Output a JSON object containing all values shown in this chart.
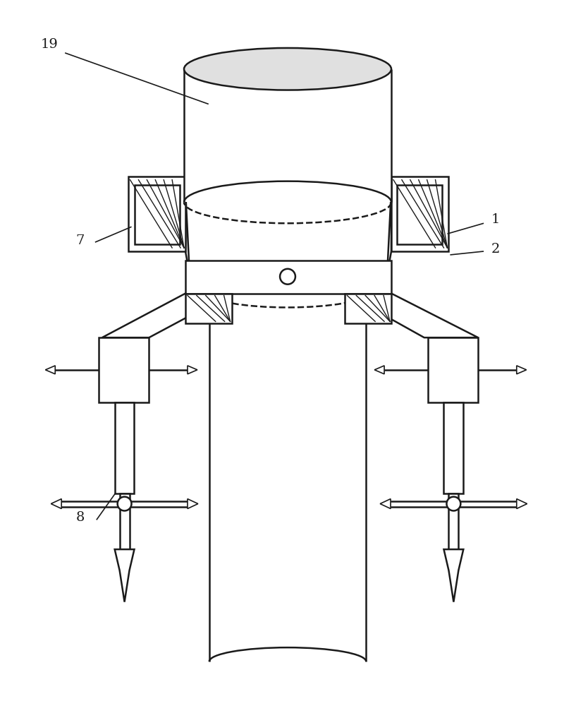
{
  "bg_color": "#ffffff",
  "line_color": "#1a1a1a",
  "line_width": 1.8,
  "label_fontsize": 14,
  "fig_width": 8.17,
  "fig_height": 10.0
}
